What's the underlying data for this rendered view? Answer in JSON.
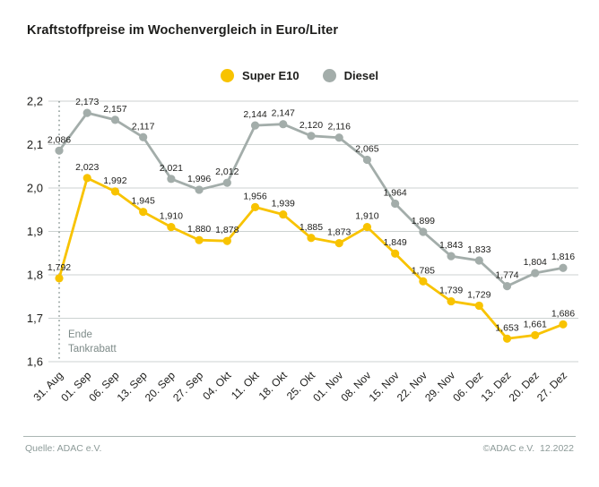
{
  "title": "Kraftstoffpreise im Wochenvergleich in Euro/Liter",
  "legend": [
    {
      "label": "Super E10",
      "color": "#f8c300"
    },
    {
      "label": "Diesel",
      "color": "#a3adaa"
    }
  ],
  "annotation": {
    "line1": "Ende",
    "line2": "Tankrabatt"
  },
  "footer": {
    "source": "Quelle: ADAC e.V.",
    "copyright": "©ADAC e.V.  12.2022"
  },
  "colors": {
    "grid": "#ccd2d1",
    "tick_text": "#1d1d1b",
    "value_label_text": "#1d1d1b",
    "annotation_line": "#8f9c99",
    "annotation_text": "#7e8b89"
  },
  "chart_data": {
    "type": "line",
    "title": "Kraftstoffpreise im Wochenvergleich in Euro/Liter",
    "xlabel": "",
    "ylabel": "Euro/Liter",
    "categories": [
      "31. Aug",
      "01. Sep",
      "06. Sep",
      "13. Sep",
      "20. Sep",
      "27. Sep",
      "04. Okt",
      "11. Okt",
      "18. Okt",
      "25. Okt",
      "01. Nov",
      "08. Nov",
      "15. Nov",
      "22. Nov",
      "29. Nov",
      "06. Dez",
      "13. Dez",
      "20. Dez",
      "27. Dez"
    ],
    "series": [
      {
        "name": "Super E10",
        "color": "#f8c300",
        "values": [
          1.792,
          2.023,
          1.992,
          1.945,
          1.91,
          1.88,
          1.878,
          1.956,
          1.939,
          1.885,
          1.873,
          1.91,
          1.849,
          1.785,
          1.739,
          1.729,
          1.653,
          1.661,
          1.686
        ]
      },
      {
        "name": "Diesel",
        "color": "#a3adaa",
        "values": [
          2.086,
          2.173,
          2.157,
          2.117,
          2.021,
          1.996,
          2.012,
          2.144,
          2.147,
          2.12,
          2.116,
          2.065,
          1.964,
          1.899,
          1.843,
          1.833,
          1.774,
          1.804,
          1.816
        ]
      }
    ],
    "ylim": [
      1.6,
      2.2
    ],
    "ytick_step": 0.1,
    "decimal_separator": ",",
    "grid": true,
    "legend_position": "top",
    "point_labels": true,
    "annotation_x_index": 0
  }
}
